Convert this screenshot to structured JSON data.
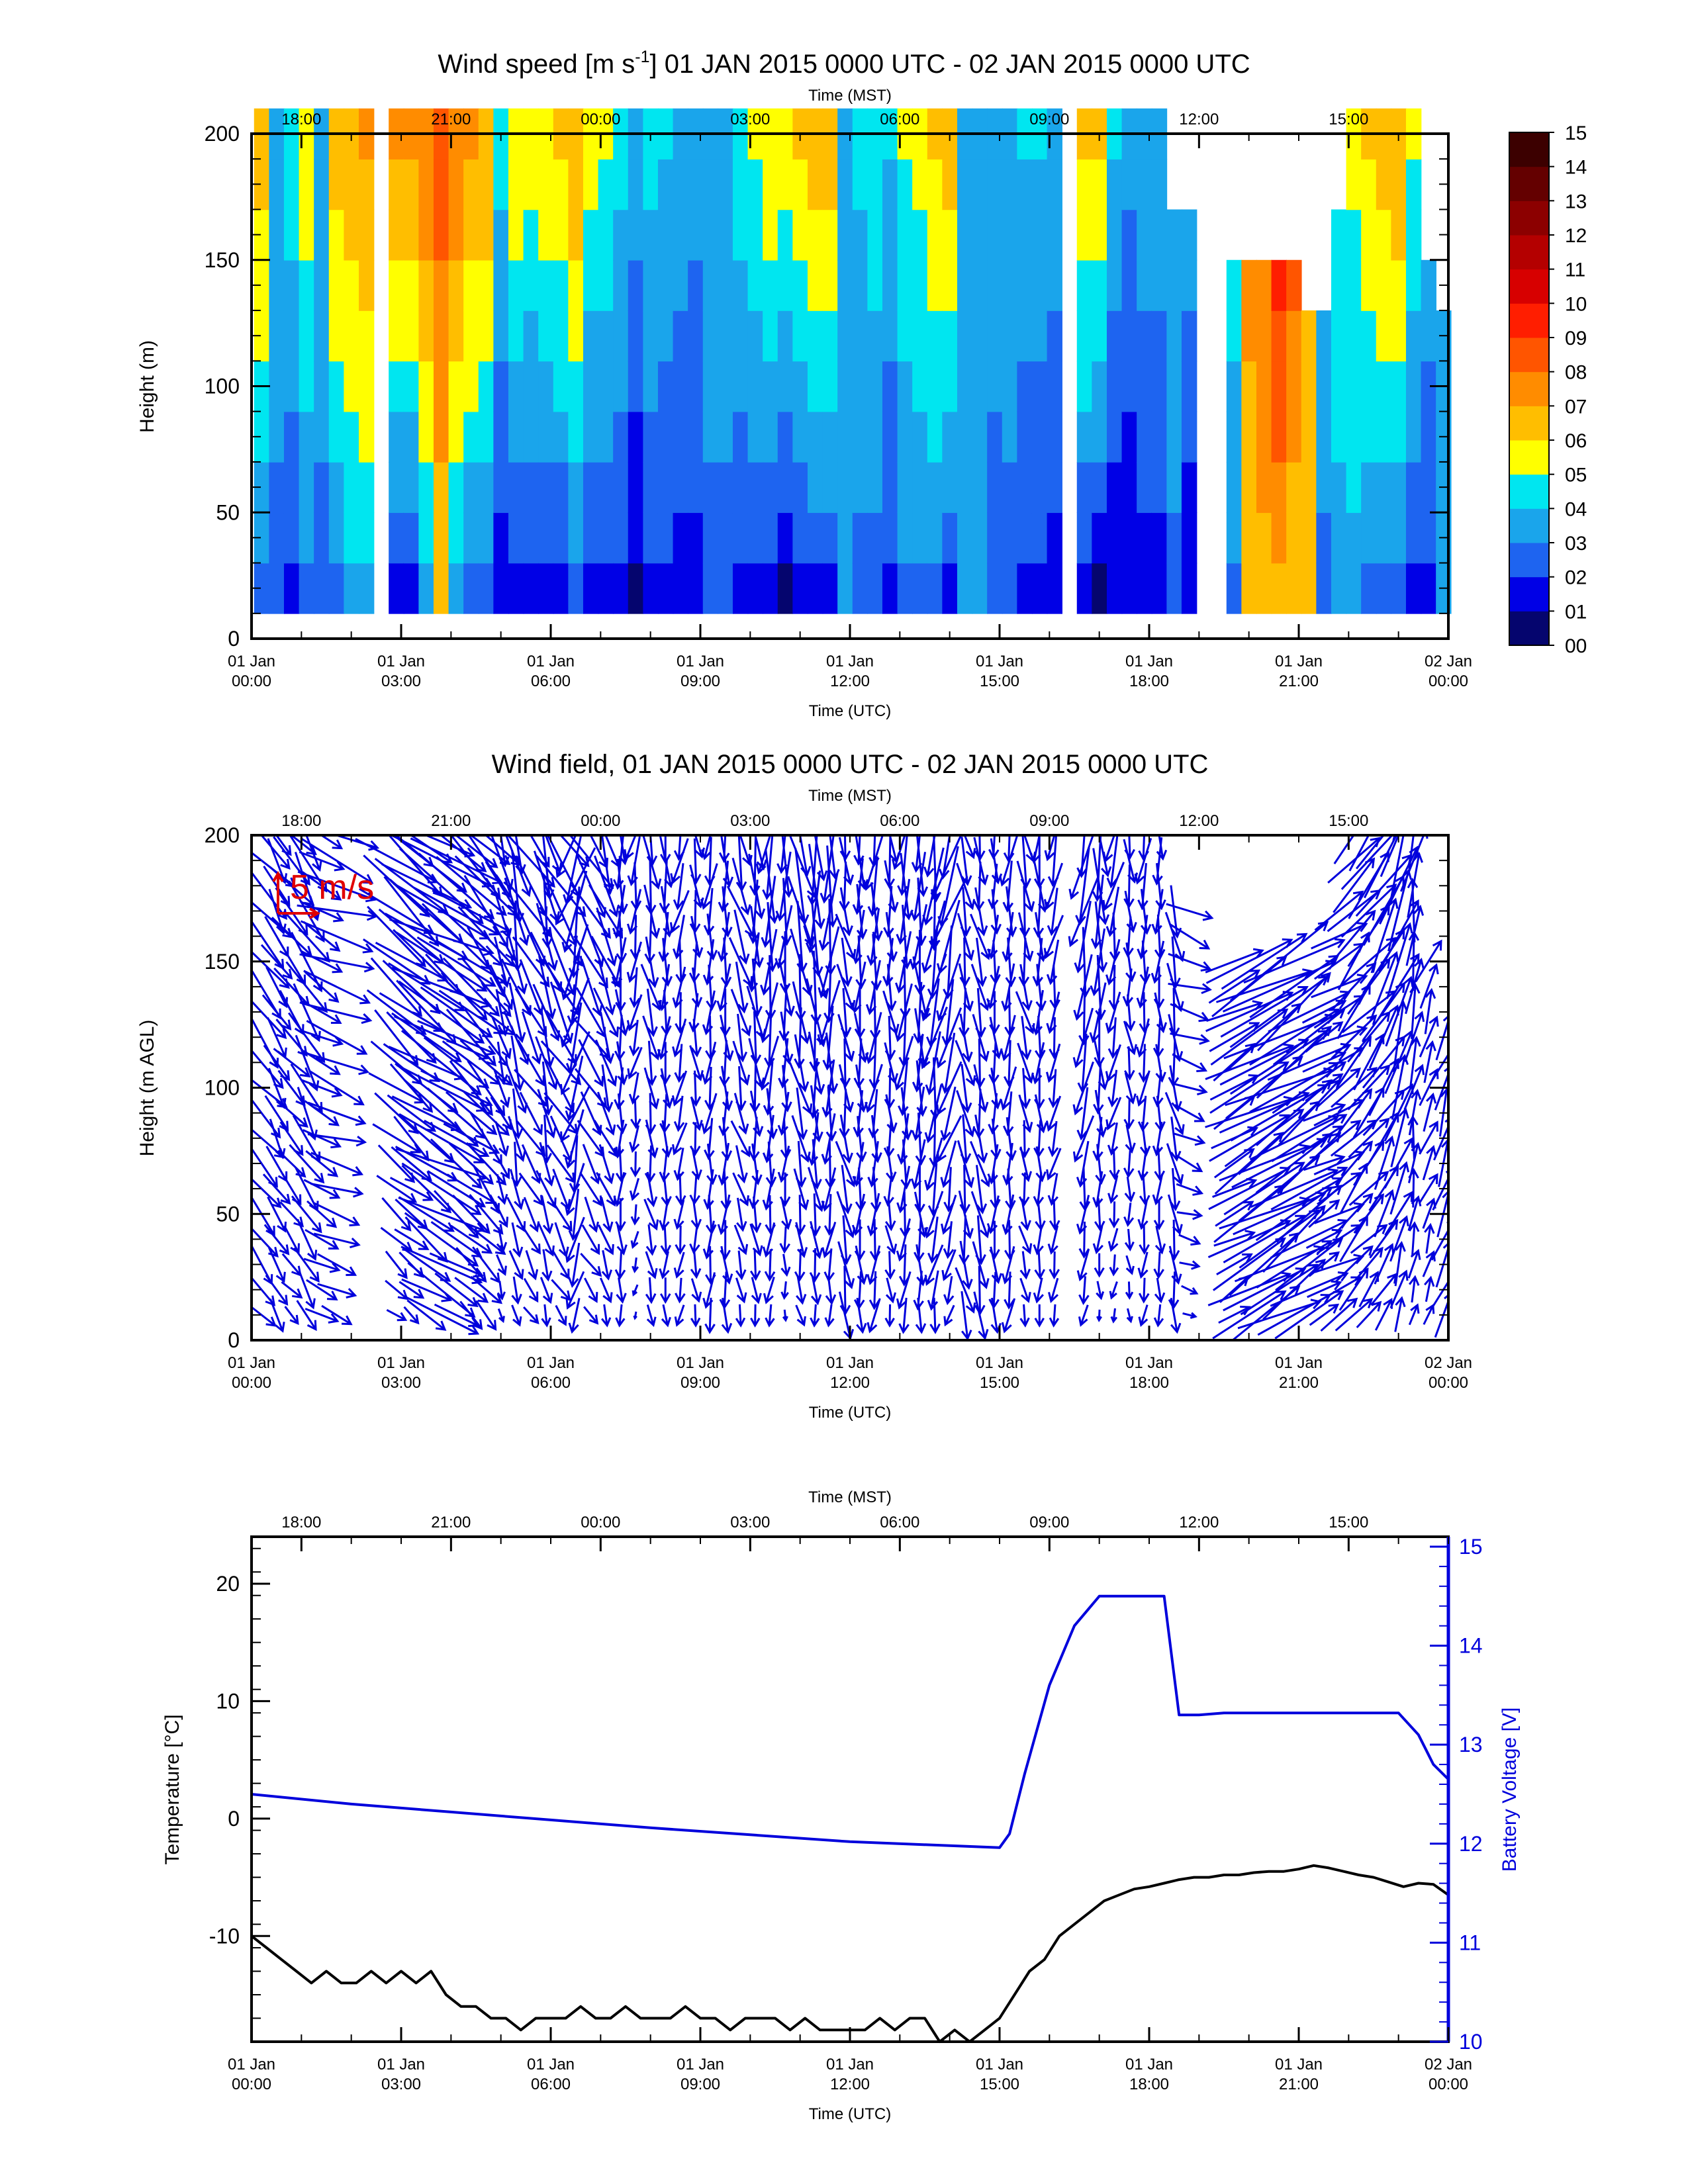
{
  "time_axis": {
    "utc_title": "Time (UTC)",
    "mst_title": "Time (MST)",
    "utc_ticks": [
      {
        "hour": 0,
        "day": "01 Jan",
        "time": "00:00"
      },
      {
        "hour": 3,
        "day": "01 Jan",
        "time": "03:00"
      },
      {
        "hour": 6,
        "day": "01 Jan",
        "time": "06:00"
      },
      {
        "hour": 9,
        "day": "01 Jan",
        "time": "09:00"
      },
      {
        "hour": 12,
        "day": "01 Jan",
        "time": "12:00"
      },
      {
        "hour": 15,
        "day": "01 Jan",
        "time": "15:00"
      },
      {
        "hour": 18,
        "day": "01 Jan",
        "time": "18:00"
      },
      {
        "hour": 21,
        "day": "01 Jan",
        "time": "21:00"
      },
      {
        "hour": 24,
        "day": "02 Jan",
        "time": "00:00"
      }
    ],
    "mst_ticks": [
      {
        "hour": 1,
        "label": "18:00"
      },
      {
        "hour": 4,
        "label": "21:00"
      },
      {
        "hour": 7,
        "label": "00:00"
      },
      {
        "hour": 10,
        "label": "03:00"
      },
      {
        "hour": 13,
        "label": "06:00"
      },
      {
        "hour": 16,
        "label": "09:00"
      },
      {
        "hour": 19,
        "label": "12:00"
      },
      {
        "hour": 22,
        "label": "15:00"
      }
    ]
  },
  "chart_data": [
    {
      "type": "heatmap",
      "title_parts": [
        "Wind speed [m s",
        "-1",
        "] 01 JAN 2015 0000 UTC - 02 JAN 2015 0000 UTC"
      ],
      "xlabel": "Time (UTC)",
      "ylabel": "Height (m)",
      "xlim": [
        0,
        24
      ],
      "ylim": [
        0,
        200
      ],
      "y_ticks": [
        0,
        50,
        100,
        150,
        200
      ],
      "colorbar_labels": [
        "00",
        "01",
        "02",
        "03",
        "04",
        "05",
        "06",
        "07",
        "08",
        "09",
        "10",
        "11",
        "12",
        "13",
        "14",
        "15"
      ],
      "colorbar_colors": [
        "#05056e",
        "#0000e6",
        "#1e64f0",
        "#1aa5eb",
        "#00e6f0",
        "#ffff00",
        "#ffbe00",
        "#ff8c00",
        "#ff5500",
        "#ff1e00",
        "#d70000",
        "#b40000",
        "#8c0000",
        "#640000",
        "#3c0000",
        "#1e0000"
      ],
      "column_times": [
        0.2,
        0.5,
        0.8,
        1.1,
        1.4,
        1.7,
        2.0,
        2.3,
        2.6,
        2.9,
        3.2,
        3.5,
        3.8,
        4.1,
        4.4,
        4.7,
        5.0,
        5.3,
        5.6,
        5.9,
        6.2,
        6.5,
        6.8,
        7.1,
        7.4,
        7.7,
        8.0,
        8.3,
        8.6,
        8.9,
        9.2,
        9.5,
        9.8,
        10.1,
        10.4,
        10.7,
        11.0,
        11.3,
        11.6,
        11.9,
        12.2,
        12.5,
        12.8,
        13.1,
        13.4,
        13.7,
        14.0,
        14.3,
        14.6,
        14.9,
        15.2,
        15.5,
        15.8,
        16.1,
        16.4,
        16.7,
        17.0,
        17.3,
        17.6,
        17.9,
        18.2,
        18.5,
        18.8,
        19.1,
        19.4,
        19.7,
        20.0,
        20.3,
        20.6,
        20.9,
        21.2,
        21.5,
        21.8,
        22.1,
        22.4,
        22.7,
        23.0,
        23.3,
        23.6,
        23.9
      ],
      "heights": [
        20,
        40,
        60,
        80,
        100,
        120,
        140,
        160,
        180,
        200
      ],
      "speed_low": [
        2.6,
        2.6,
        1.6,
        2.6,
        2.6,
        2.6,
        3.6,
        3.6,
        null,
        1.6,
        1.6,
        3.6,
        6.2,
        3.6,
        2.6,
        2.6,
        1.0,
        1.6,
        1.6,
        1.6,
        1.6,
        2.6,
        1.6,
        1.6,
        1.6,
        0.5,
        1.6,
        1.6,
        1.6,
        1.6,
        2.6,
        2.6,
        1.6,
        1.6,
        1.6,
        0.8,
        1.6,
        1.6,
        1.6,
        3.6,
        2.6,
        2.6,
        1.6,
        2.6,
        2.6,
        2.6,
        1.6,
        3.6,
        3.6,
        2.6,
        2.6,
        1.6,
        1.6,
        1.6,
        null,
        1.6,
        0.8,
        1.0,
        1.0,
        1.6,
        1.6,
        2.6,
        1.0,
        2.6,
        2.6,
        2.6,
        6.5,
        6.8,
        6.5,
        6.2,
        6.2,
        2.6,
        3.6,
        3.6,
        2.6,
        2.6,
        2.6,
        1.6,
        1.6,
        3.6
      ],
      "speed_high": [
        6.5,
        3.6,
        4.6,
        5.6,
        3.6,
        6.5,
        6.8,
        7.1,
        null,
        7.2,
        7.3,
        7.8,
        8.6,
        7.8,
        7.2,
        6.8,
        4.6,
        5.8,
        5.4,
        5.9,
        6.2,
        6.8,
        5.4,
        5.1,
        4.3,
        3.8,
        4.4,
        4.1,
        3.6,
        3.4,
        3.6,
        3.9,
        4.6,
        5.2,
        5.9,
        5.6,
        6.1,
        6.8,
        6.5,
        3.6,
        4.3,
        4.6,
        4.1,
        5.2,
        5.4,
        6.2,
        6.5,
        3.6,
        3.6,
        3.4,
        3.9,
        4.1,
        4.1,
        3.8,
        null,
        6.2,
        6.2,
        4.1,
        3.4,
        3.6,
        3.6,
        3.9,
        3.6,
        null,
        null,
        4.6,
        7.2,
        7.6,
        9.4,
        8.2,
        6.8,
        3.6,
        4.6,
        5.2,
        6.1,
        6.5,
        6.8,
        5.2,
        3.6,
        3.6
      ],
      "top_height": [
        200,
        200,
        200,
        200,
        200,
        200,
        200,
        200,
        null,
        200,
        200,
        200,
        200,
        200,
        200,
        200,
        200,
        200,
        200,
        200,
        200,
        200,
        200,
        200,
        200,
        200,
        200,
        200,
        200,
        200,
        200,
        200,
        200,
        200,
        200,
        200,
        200,
        200,
        200,
        200,
        200,
        200,
        200,
        200,
        200,
        200,
        200,
        200,
        200,
        200,
        200,
        200,
        200,
        200,
        null,
        200,
        200,
        200,
        200,
        200,
        200,
        170,
        170,
        150,
        130,
        150,
        150,
        150,
        150,
        150,
        130,
        130,
        170,
        200,
        200,
        200,
        200,
        200,
        150,
        120
      ]
    },
    {
      "type": "quiver",
      "title": "Wind field, 01 JAN 2015 0000 UTC - 02 JAN 2015 0000 UTC",
      "xlabel": "Time (UTC)",
      "ylabel": "Height (m AGL)",
      "xlim": [
        0,
        24
      ],
      "ylim": [
        0,
        200
      ],
      "y_ticks": [
        0,
        50,
        100,
        150,
        200
      ],
      "reference_label": "5 m/s",
      "reference_speed": 5,
      "column_times": [
        0.2,
        0.5,
        0.8,
        1.1,
        1.4,
        1.7,
        2.0,
        2.3,
        2.6,
        2.9,
        3.2,
        3.5,
        3.8,
        4.1,
        4.4,
        4.7,
        5.0,
        5.3,
        5.6,
        5.9,
        6.2,
        6.5,
        6.8,
        7.1,
        7.4,
        7.7,
        8.0,
        8.3,
        8.6,
        8.9,
        9.2,
        9.5,
        9.8,
        10.1,
        10.4,
        10.7,
        11.0,
        11.3,
        11.6,
        11.9,
        12.2,
        12.5,
        12.8,
        13.1,
        13.4,
        13.7,
        14.0,
        14.3,
        14.6,
        14.9,
        15.2,
        15.5,
        15.8,
        16.1,
        16.4,
        16.7,
        17.0,
        17.3,
        17.6,
        17.9,
        18.2,
        18.5,
        18.8,
        19.1,
        19.4,
        19.7,
        20.0,
        20.3,
        20.6,
        20.9,
        21.2,
        21.5,
        21.8,
        22.1,
        22.4,
        22.7,
        23.0,
        23.3,
        23.6,
        23.9
      ],
      "heights": [
        10,
        20,
        30,
        40,
        50,
        60,
        70,
        80,
        90,
        100,
        110,
        120,
        130,
        140,
        150,
        160,
        170,
        180,
        190,
        200
      ],
      "wind_dir_deg": [
        320,
        330,
        320,
        330,
        300,
        290,
        null,
        null,
        null,
        310,
        310,
        305,
        300,
        305,
        310,
        320,
        340,
        345,
        330,
        345,
        330,
        15,
        330,
        340,
        0,
        10,
        350,
        0,
        10,
        355,
        5,
        0,
        345,
        355,
        5,
        0,
        350,
        355,
        5,
        350,
        0,
        5,
        355,
        5,
        0,
        10,
        15,
        350,
        350,
        0,
        5,
        350,
        0,
        10,
        null,
        10,
        0,
        10,
        355,
        5,
        0,
        350,
        290,
        250,
        240,
        240,
        240,
        240,
        240,
        235,
        235,
        240,
        240,
        220,
        220,
        210,
        200,
        190,
        200,
        200
      ]
    },
    {
      "type": "line",
      "xlabel": "Time (UTC)",
      "ylabel": "Temperature [°C]",
      "y2label": "Battery Voltage [V]",
      "xlim": [
        0,
        24
      ],
      "ylim": [
        -19,
        24
      ],
      "y2lim": [
        10,
        15.1
      ],
      "y_ticks": [
        -10,
        0,
        10,
        20
      ],
      "y2_ticks": [
        10,
        11,
        12,
        13,
        14,
        15
      ],
      "series": [
        {
          "axis": "left",
          "color": "#000000",
          "x": [
            0,
            0.3,
            0.6,
            0.9,
            1.2,
            1.5,
            1.8,
            2.1,
            2.4,
            2.7,
            3.0,
            3.3,
            3.6,
            3.9,
            4.2,
            4.5,
            4.8,
            5.1,
            5.4,
            5.7,
            6.0,
            6.3,
            6.6,
            6.9,
            7.2,
            7.5,
            7.8,
            8.1,
            8.4,
            8.7,
            9.0,
            9.3,
            9.6,
            9.9,
            10.2,
            10.5,
            10.8,
            11.1,
            11.4,
            11.7,
            12.0,
            12.3,
            12.6,
            12.9,
            13.2,
            13.5,
            13.8,
            14.1,
            14.4,
            14.7,
            15.0,
            15.3,
            15.6,
            15.9,
            16.2,
            16.5,
            16.8,
            17.1,
            17.4,
            17.7,
            18.0,
            18.3,
            18.6,
            18.9,
            19.2,
            19.5,
            19.8,
            20.1,
            20.4,
            20.7,
            21.0,
            21.3,
            21.6,
            21.9,
            22.2,
            22.5,
            22.8,
            23.1,
            23.4,
            23.7,
            24.0
          ],
          "y": [
            -10,
            -11,
            -12,
            -13,
            -14,
            -13,
            -14,
            -14,
            -13,
            -14,
            -13,
            -14,
            -13,
            -15,
            -16,
            -16,
            -17,
            -17,
            -18,
            -17,
            -17,
            -17,
            -16,
            -17,
            -17,
            -16,
            -17,
            -17,
            -17,
            -16,
            -17,
            -17,
            -18,
            -17,
            -17,
            -17,
            -18,
            -17,
            -18,
            -18,
            -18,
            -18,
            -17,
            -18,
            -17,
            -17,
            -19,
            -18,
            -19,
            -18,
            -17,
            -15,
            -13,
            -12,
            -10,
            -9,
            -8,
            -7,
            -6.5,
            -6,
            -5.8,
            -5.5,
            -5.2,
            -5,
            -5,
            -4.8,
            -4.8,
            -4.6,
            -4.5,
            -4.5,
            -4.3,
            -4,
            -4.2,
            -4.5,
            -4.8,
            -5,
            -5.4,
            -5.8,
            -5.5,
            -5.6,
            -6.5
          ]
        },
        {
          "axis": "right",
          "color": "#0000dc",
          "x": [
            0,
            2,
            4,
            6,
            8,
            10,
            12,
            14,
            15.0,
            15.2,
            15.5,
            16.0,
            16.5,
            17.0,
            17.5,
            18.0,
            18.3,
            18.6,
            19.0,
            19.5,
            20,
            22,
            23.0,
            23.4,
            23.7,
            24.0
          ],
          "y": [
            12.5,
            12.4,
            12.32,
            12.24,
            12.16,
            12.09,
            12.02,
            11.98,
            11.96,
            12.1,
            12.7,
            13.6,
            14.2,
            14.5,
            14.5,
            14.5,
            14.5,
            13.3,
            13.3,
            13.32,
            13.32,
            13.32,
            13.32,
            13.1,
            12.8,
            12.65
          ]
        }
      ]
    }
  ]
}
